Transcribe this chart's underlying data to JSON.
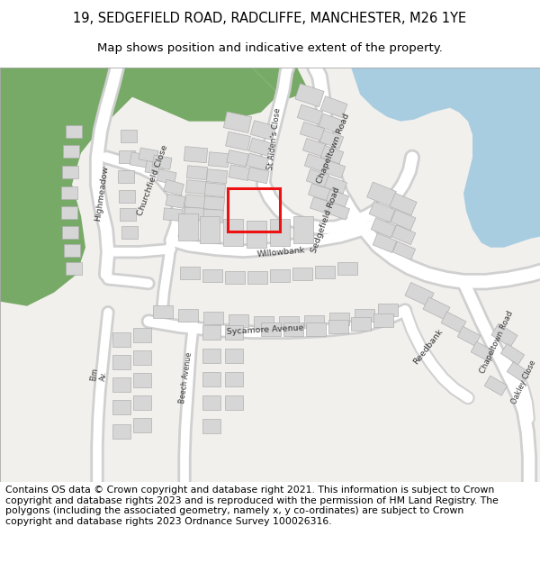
{
  "title_line1": "19, SEDGEFIELD ROAD, RADCLIFFE, MANCHESTER, M26 1YE",
  "title_line2": "Map shows position and indicative extent of the property.",
  "footer_text": "Contains OS data © Crown copyright and database right 2021. This information is subject to Crown copyright and database rights 2023 and is reproduced with the permission of HM Land Registry. The polygons (including the associated geometry, namely x, y co-ordinates) are subject to Crown copyright and database rights 2023 Ordnance Survey 100026316.",
  "title_fontsize": 10.5,
  "subtitle_fontsize": 9.5,
  "footer_fontsize": 7.8,
  "background_color": "#ffffff",
  "map_bg_color": "#f2f0ed",
  "road_color": "#ffffff",
  "road_outline_color": "#d0d0d0",
  "building_color": "#d6d6d6",
  "building_outline_color": "#b0b0b0",
  "green_area_color": "#77aa66",
  "blue_area_color": "#a8cde0",
  "highlight_color": "#ee1111",
  "highlight_linewidth": 2.2
}
